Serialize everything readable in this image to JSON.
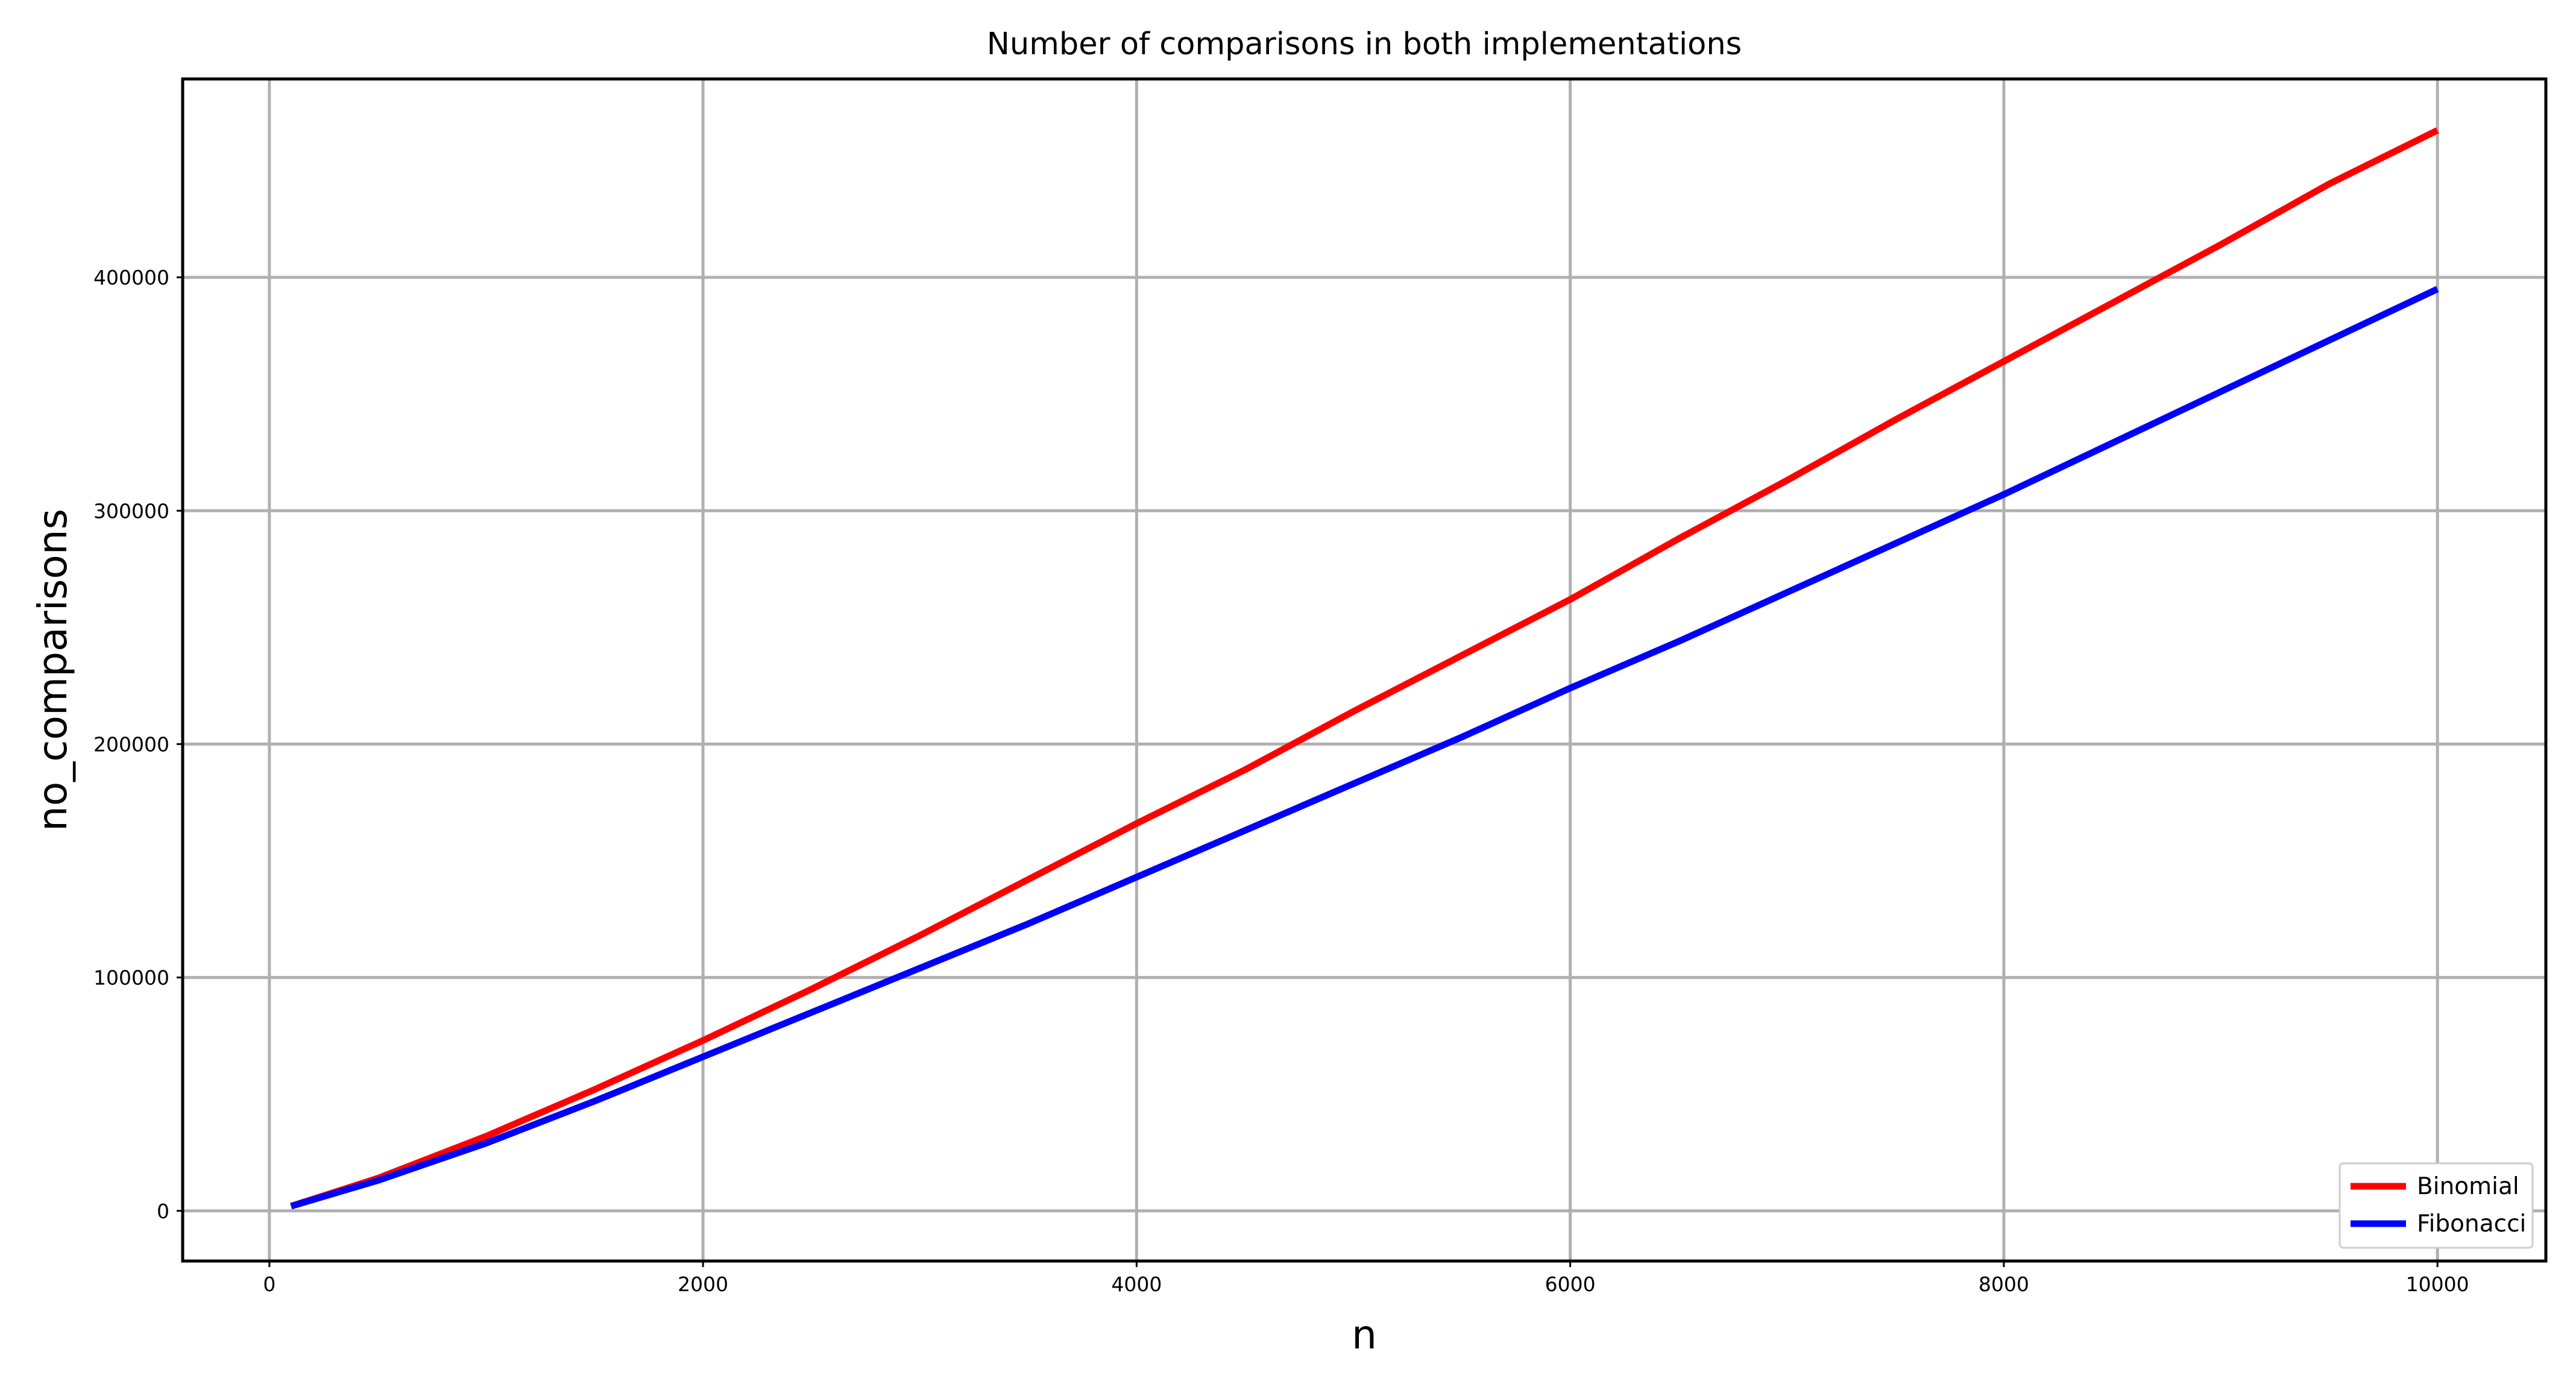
{
  "chart_data": {
    "type": "line",
    "title": "Number of comparisons in both implementations",
    "xlabel": "n",
    "ylabel": "no_comparisons",
    "xlim": [
      -400,
      10500
    ],
    "ylim": [
      -21500,
      485000
    ],
    "xticks": [
      0,
      2000,
      4000,
      6000,
      8000,
      10000
    ],
    "yticks": [
      0,
      100000,
      200000,
      300000,
      400000
    ],
    "grid": true,
    "legend_position": "bottom-right",
    "series": [
      {
        "name": "Binomial",
        "color": "#ff0000",
        "x": [
          100,
          500,
          1000,
          1500,
          2000,
          2500,
          3000,
          3500,
          4000,
          4500,
          5000,
          5500,
          6000,
          6500,
          7000,
          7500,
          8000,
          8500,
          9000,
          9500,
          10000
        ],
        "y": [
          2000,
          14000,
          32000,
          52000,
          73000,
          95000,
          118000,
          142000,
          166000,
          189000,
          214000,
          238000,
          262000,
          288000,
          313000,
          339000,
          364000,
          389000,
          414000,
          440000,
          463000
        ]
      },
      {
        "name": "Fibonacci",
        "color": "#0000ff",
        "x": [
          100,
          500,
          1000,
          1500,
          2000,
          2500,
          3000,
          3500,
          4000,
          4500,
          5000,
          5500,
          6000,
          6500,
          7000,
          7500,
          8000,
          8500,
          9000,
          9500,
          10000
        ],
        "y": [
          2000,
          13000,
          29000,
          47000,
          66000,
          85000,
          104000,
          123000,
          143000,
          163000,
          183000,
          203000,
          224000,
          244000,
          265000,
          286000,
          307000,
          329000,
          351000,
          373000,
          395000
        ]
      }
    ]
  }
}
